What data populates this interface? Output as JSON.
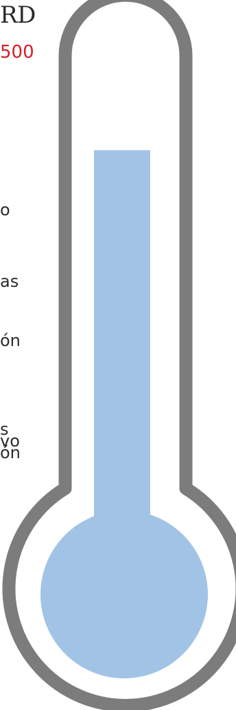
{
  "heading": {
    "text": "RD"
  },
  "subheading": {
    "text": "500",
    "color": "#d42027"
  },
  "side_text": [
    "o",
    "as",
    "ón",
    "s",
    "vo",
    "ón"
  ],
  "thermometer": {
    "fill_level": 0.82,
    "fill_color": "#a1c3e6",
    "outline_color": "#7c7c7c"
  }
}
